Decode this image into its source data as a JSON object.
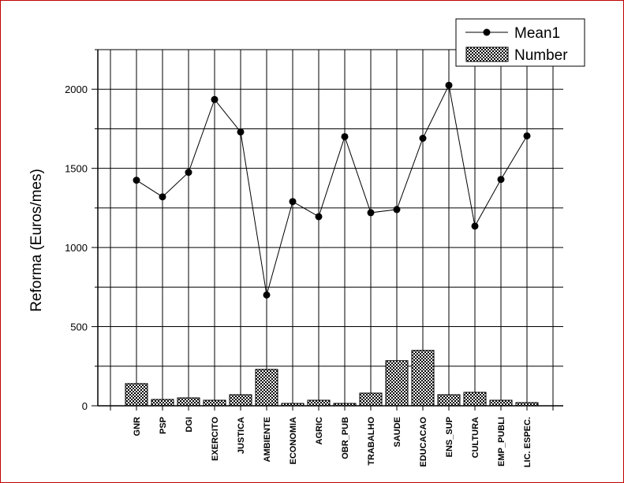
{
  "chart_data": {
    "type": "bar",
    "title": "",
    "xlabel": "",
    "ylabel": "Reforma (Euros/mes)",
    "ylim": [
      0,
      2250
    ],
    "yticks": [
      0,
      500,
      1000,
      1500,
      2000
    ],
    "grid": true,
    "legend_position": "top-right",
    "categories": [
      "GNR",
      "PSP",
      "DGI",
      "EXERCITO",
      "JUSTICA",
      "AMBIENTE",
      "ECONOMIA",
      "AGRIC",
      "OBR_PUB",
      "TRABALHO",
      "SAUDE",
      "EDUCACAO",
      "ENS_SUP",
      "CULTURA",
      "EMP_PUBLI",
      "LIC. ESPEC."
    ],
    "series": [
      {
        "name": "Mean1",
        "kind": "line",
        "values": [
          1425,
          1320,
          1475,
          1935,
          1730,
          700,
          1290,
          1195,
          1700,
          1220,
          1240,
          1690,
          2025,
          1135,
          1430,
          1705
        ]
      },
      {
        "name": "Number",
        "kind": "bar",
        "values": [
          140,
          40,
          50,
          35,
          70,
          230,
          15,
          35,
          15,
          80,
          285,
          350,
          70,
          85,
          35,
          20
        ]
      }
    ]
  }
}
